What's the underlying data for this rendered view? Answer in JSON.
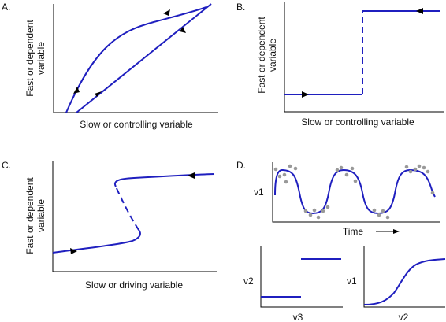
{
  "colors": {
    "curve": "#1f1fbf",
    "axis": "#000000",
    "points": "#999999",
    "text": "#111111"
  },
  "panels": {
    "A": {
      "label": "A.",
      "xlabel": "Slow or controlling variable",
      "ylabel_line1": "Fast or dependent",
      "ylabel_line2": "variable"
    },
    "B": {
      "label": "B.",
      "xlabel": "Slow or controlling variable",
      "ylabel_line1": "Fast or dependent",
      "ylabel_line2": "variable"
    },
    "C": {
      "label": "C.",
      "xlabel": "Slow or driving variable",
      "ylabel_line1": "Fast or dependent",
      "ylabel_line2": "variable"
    },
    "D": {
      "label": "D.",
      "timeseries": {
        "ylabel": "v1",
        "xlabel": "Time"
      },
      "step_plot": {
        "ylabel": "v2",
        "xlabel": "v3"
      },
      "sigmoid_plot": {
        "ylabel": "v1",
        "xlabel": "v2"
      }
    }
  }
}
